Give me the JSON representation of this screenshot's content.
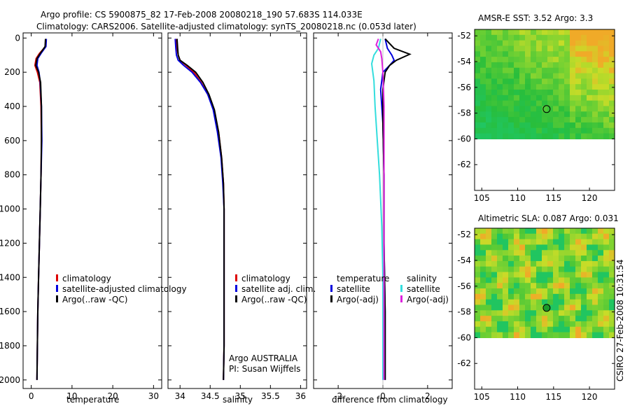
{
  "title": {
    "line1": "Argo profile: CS 5900875_82 17-Feb-2008 20080218_190 57.683S 114.033E",
    "line2": "Climatology: CARS2006. Satellite-adjusted climatology: synTS_20080218.nc (0.053d later)"
  },
  "side_label": "CSIRO 27-Feb-2008 10:31:54",
  "colors": {
    "red": "#dd0000",
    "blue": "#0000dd",
    "black": "#000000",
    "cyan": "#33dddd",
    "magenta": "#dd22dd"
  },
  "chart_data": [
    {
      "type": "line",
      "name": "temperature",
      "xlabel": "temperature",
      "ylabel": "",
      "xlim": [
        -2,
        32
      ],
      "ylim": [
        2050,
        -30
      ],
      "xticks": [
        0,
        10,
        20,
        30
      ],
      "yticks": [
        0,
        200,
        400,
        600,
        800,
        1000,
        1200,
        1400,
        1600,
        1800,
        2000
      ],
      "legend": [
        "climatology",
        "satellite-adjusted climatology",
        "Argo(..raw -QC)"
      ],
      "legend_location": "lower-middle",
      "series": [
        {
          "name": "climatology",
          "color": "#dd0000",
          "x": [
            3.6,
            3.5,
            2.0,
            1.2,
            0.9,
            1.5,
            2.1,
            2.4,
            2.5,
            2.4,
            2.2,
            2.0,
            1.8,
            1.6,
            1.5,
            1.4
          ],
          "y": [
            5,
            50,
            90,
            120,
            160,
            200,
            260,
            400,
            600,
            800,
            1000,
            1200,
            1400,
            1600,
            1800,
            2000
          ]
        },
        {
          "name": "satellite-adjusted climatology",
          "color": "#0000dd",
          "x": [
            3.7,
            3.6,
            2.4,
            1.6,
            1.4,
            1.9,
            2.2,
            2.5,
            2.6,
            2.4,
            2.2,
            2.0,
            1.8,
            1.6,
            1.5,
            1.4
          ],
          "y": [
            5,
            50,
            90,
            120,
            160,
            200,
            260,
            400,
            600,
            800,
            1000,
            1200,
            1400,
            1600,
            1800,
            2000
          ]
        },
        {
          "name": "Argo(..raw -QC)",
          "color": "#000000",
          "x": [
            3.5,
            3.4,
            2.2,
            1.4,
            1.1,
            1.8,
            2.3,
            2.5,
            2.5,
            2.4,
            2.2,
            2.0,
            1.8,
            1.6,
            1.5,
            1.4
          ],
          "y": [
            5,
            50,
            90,
            120,
            160,
            200,
            260,
            400,
            600,
            800,
            1000,
            1200,
            1400,
            1600,
            1800,
            2000
          ]
        }
      ]
    },
    {
      "type": "line",
      "name": "salinity",
      "xlabel": "salinity",
      "xlim": [
        33.8,
        36.1
      ],
      "ylim": [
        2050,
        -30
      ],
      "xticks": [
        34,
        34.5,
        35,
        35.5,
        36
      ],
      "legend": [
        "climatology",
        "satellite adj. clim.",
        "Argo(..raw -QC)"
      ],
      "legend_location": "lower-middle",
      "annotation": [
        "Argo AUSTRALIA",
        "PI: Susan Wijffels"
      ],
      "series": [
        {
          "name": "climatology",
          "color": "#dd0000",
          "x": [
            33.94,
            33.95,
            33.97,
            34.0,
            34.1,
            34.23,
            34.35,
            34.46,
            34.56,
            34.64,
            34.69,
            34.72,
            34.73,
            34.73,
            34.73,
            34.73,
            34.72
          ],
          "y": [
            5,
            60,
            100,
            130,
            160,
            200,
            260,
            330,
            420,
            550,
            700,
            850,
            1000,
            1200,
            1500,
            1800,
            2000
          ]
        },
        {
          "name": "satellite adj. clim.",
          "color": "#0000dd",
          "x": [
            33.92,
            33.93,
            33.94,
            33.97,
            34.06,
            34.2,
            34.34,
            34.46,
            34.55,
            34.62,
            34.68,
            34.71,
            34.73,
            34.73,
            34.73,
            34.73,
            34.72
          ],
          "y": [
            5,
            60,
            100,
            130,
            160,
            200,
            260,
            330,
            420,
            550,
            700,
            850,
            1000,
            1200,
            1500,
            1800,
            2000
          ]
        },
        {
          "name": "Argo(..raw -QC)",
          "color": "#000000",
          "x": [
            33.95,
            33.96,
            33.97,
            34.0,
            34.12,
            34.26,
            34.38,
            34.48,
            34.57,
            34.64,
            34.69,
            34.72,
            34.73,
            34.73,
            34.73,
            34.73,
            34.72
          ],
          "y": [
            5,
            60,
            100,
            130,
            160,
            200,
            260,
            330,
            420,
            550,
            700,
            850,
            1000,
            1200,
            1500,
            1800,
            2000
          ]
        }
      ]
    },
    {
      "type": "line",
      "name": "difference",
      "xlabel": "difference from climatology",
      "xlim": [
        -3.1,
        3.1
      ],
      "ylim": [
        2050,
        -30
      ],
      "xticks": [
        -2,
        0,
        2
      ],
      "legend_temperature": [
        "temperature",
        "satellite",
        "Argo(-adj)"
      ],
      "legend_salinity": [
        "salinity",
        "satellite",
        "Argo(-adj)"
      ],
      "legend_location": "lower-middle",
      "series": [
        {
          "name": "temperature satellite",
          "color": "#0000dd",
          "x": [
            0.1,
            0.2,
            0.4,
            0.5,
            0.3,
            0.0,
            -0.1,
            0.0,
            0.05,
            0.05,
            0.1,
            0.1
          ],
          "y": [
            5,
            60,
            100,
            130,
            160,
            200,
            300,
            500,
            800,
            1200,
            1600,
            2000
          ]
        },
        {
          "name": "temperature Argo(-adj)",
          "color": "#000000",
          "x": [
            0.1,
            0.5,
            1.2,
            0.6,
            0.3,
            0.1,
            0.0,
            0.0,
            0.05,
            0.05,
            0.1,
            0.1
          ],
          "y": [
            5,
            60,
            95,
            130,
            160,
            200,
            300,
            500,
            800,
            1200,
            1600,
            2000
          ]
        },
        {
          "name": "salinity satellite",
          "color": "#33dddd",
          "x": [
            -0.1,
            -0.2,
            -0.4,
            -0.5,
            -0.4,
            -0.35,
            -0.25,
            -0.15,
            -0.05,
            0.0,
            0.0,
            0.0
          ],
          "y": [
            5,
            60,
            100,
            150,
            250,
            400,
            600,
            800,
            1100,
            1400,
            1700,
            2000
          ]
        },
        {
          "name": "salinity Argo(-adj)",
          "color": "#dd22dd",
          "x": [
            -0.2,
            -0.3,
            -0.1,
            -0.05,
            0.0,
            0.05,
            0.05,
            0.05,
            0.05,
            0.05
          ],
          "y": [
            5,
            40,
            80,
            120,
            200,
            400,
            800,
            1200,
            1600,
            2000
          ]
        }
      ]
    },
    {
      "type": "heatmap",
      "name": "amsre-sst",
      "title": "AMSR-E SST: 3.52 Argo: 3.3",
      "xlim": [
        104,
        123.5
      ],
      "ylim": [
        -64,
        -51.5
      ],
      "xticks": [
        105,
        110,
        115,
        120
      ],
      "yticks": [
        -52,
        -54,
        -56,
        -58,
        -60,
        -62
      ],
      "data_extent_y": [
        -60,
        -51.5
      ],
      "marker": {
        "lon": 114.033,
        "lat": -57.683
      }
    },
    {
      "type": "heatmap",
      "name": "altimetric-sla",
      "title": "Altimetric SLA: 0.087 Argo: 0.031",
      "xlim": [
        104,
        123.5
      ],
      "ylim": [
        -64,
        -51.5
      ],
      "xticks": [
        105,
        110,
        115,
        120
      ],
      "yticks": [
        -52,
        -54,
        -56,
        -58,
        -60,
        -62
      ],
      "data_extent_y": [
        -60,
        -51.5
      ],
      "marker": {
        "lon": 114.033,
        "lat": -57.683
      }
    }
  ]
}
